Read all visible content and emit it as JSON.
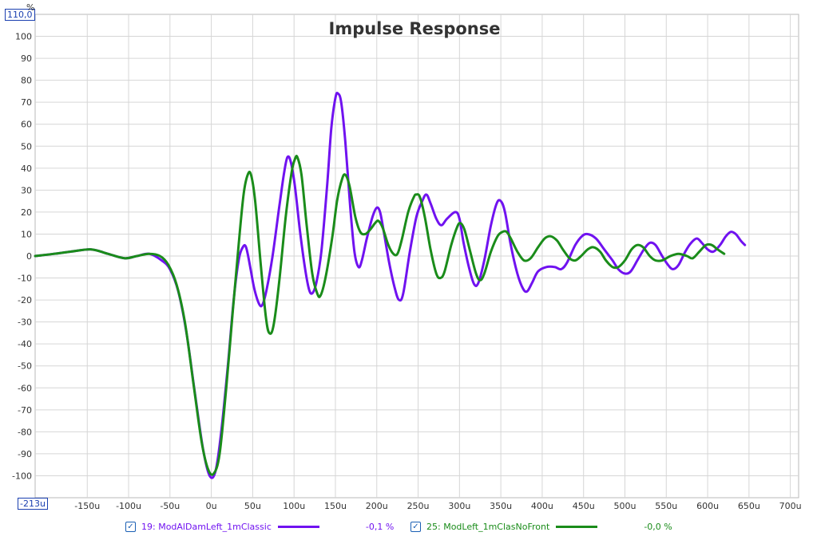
{
  "chart_data": {
    "type": "line",
    "title": "Impulse Response",
    "xlabel": "",
    "ylabel": "%",
    "y_max_label": "110,0",
    "x_min_label": "-213u",
    "xlim": [
      -213,
      710
    ],
    "ylim": [
      -110,
      110
    ],
    "x_ticks": [
      -150,
      -100,
      -50,
      0,
      50,
      100,
      150,
      200,
      250,
      300,
      350,
      400,
      450,
      500,
      550,
      600,
      650,
      700
    ],
    "x_tick_labels": [
      "-150u",
      "-100u",
      "-50u",
      "0u",
      "50u",
      "100u",
      "150u",
      "200u",
      "250u",
      "300u",
      "350u",
      "400u",
      "450u",
      "500u",
      "550u",
      "600u",
      "650u",
      "700u"
    ],
    "y_ticks": [
      100,
      90,
      80,
      70,
      60,
      50,
      40,
      30,
      20,
      10,
      0,
      -10,
      -20,
      -30,
      -40,
      -50,
      -60,
      -70,
      -80,
      -90,
      -100
    ],
    "y_tick_labels": [
      "100",
      "90",
      "80",
      "70",
      "60",
      "50",
      "40",
      "30",
      "20",
      "10",
      "0",
      "-10",
      "-20",
      "-30",
      "-40",
      "-50",
      "-60",
      "-70",
      "-80",
      "-90",
      "-100"
    ],
    "grid": true,
    "legend_position": "bottom",
    "series": [
      {
        "name": "19: ModAlDamLeft_1mClassic",
        "value_label": "-0,1 %",
        "color": "#7012f0",
        "points": [
          [
            -213,
            0
          ],
          [
            -190,
            1
          ],
          [
            -170,
            2
          ],
          [
            -145,
            3
          ],
          [
            -125,
            1
          ],
          [
            -105,
            -1
          ],
          [
            -90,
            0
          ],
          [
            -75,
            1
          ],
          [
            -60,
            -2
          ],
          [
            -50,
            -6
          ],
          [
            -40,
            -16
          ],
          [
            -30,
            -35
          ],
          [
            -20,
            -62
          ],
          [
            -10,
            -88
          ],
          [
            -2,
            -100
          ],
          [
            5,
            -98
          ],
          [
            12,
            -80
          ],
          [
            20,
            -50
          ],
          [
            27,
            -20
          ],
          [
            33,
            -2
          ],
          [
            38,
            4
          ],
          [
            42,
            4
          ],
          [
            47,
            -5
          ],
          [
            52,
            -15
          ],
          [
            58,
            -22
          ],
          [
            62,
            -22
          ],
          [
            67,
            -15
          ],
          [
            74,
            0
          ],
          [
            82,
            22
          ],
          [
            88,
            38
          ],
          [
            92,
            45
          ],
          [
            96,
            43
          ],
          [
            101,
            32
          ],
          [
            107,
            12
          ],
          [
            113,
            -5
          ],
          [
            118,
            -15
          ],
          [
            122,
            -17
          ],
          [
            127,
            -12
          ],
          [
            133,
            2
          ],
          [
            140,
            32
          ],
          [
            145,
            58
          ],
          [
            150,
            72
          ],
          [
            153,
            74
          ],
          [
            157,
            70
          ],
          [
            162,
            52
          ],
          [
            168,
            22
          ],
          [
            173,
            2
          ],
          [
            178,
            -5
          ],
          [
            182,
            -2
          ],
          [
            188,
            8
          ],
          [
            195,
            18
          ],
          [
            200,
            22
          ],
          [
            204,
            20
          ],
          [
            208,
            12
          ],
          [
            215,
            -3
          ],
          [
            222,
            -15
          ],
          [
            227,
            -20
          ],
          [
            232,
            -17
          ],
          [
            240,
            2
          ],
          [
            248,
            18
          ],
          [
            255,
            25
          ],
          [
            260,
            28
          ],
          [
            265,
            24
          ],
          [
            272,
            17
          ],
          [
            278,
            14
          ],
          [
            285,
            17
          ],
          [
            295,
            20
          ],
          [
            300,
            17
          ],
          [
            305,
            6
          ],
          [
            312,
            -6
          ],
          [
            318,
            -13
          ],
          [
            323,
            -12
          ],
          [
            330,
            -2
          ],
          [
            338,
            14
          ],
          [
            345,
            24
          ],
          [
            350,
            25
          ],
          [
            355,
            20
          ],
          [
            362,
            5
          ],
          [
            370,
            -8
          ],
          [
            377,
            -15
          ],
          [
            382,
            -16
          ],
          [
            388,
            -12
          ],
          [
            395,
            -7
          ],
          [
            405,
            -5
          ],
          [
            415,
            -5
          ],
          [
            423,
            -6
          ],
          [
            430,
            -3
          ],
          [
            440,
            5
          ],
          [
            448,
            9
          ],
          [
            455,
            10
          ],
          [
            465,
            8
          ],
          [
            475,
            3
          ],
          [
            485,
            -2
          ],
          [
            492,
            -6
          ],
          [
            500,
            -8
          ],
          [
            507,
            -7
          ],
          [
            515,
            -2
          ],
          [
            523,
            3
          ],
          [
            530,
            6
          ],
          [
            537,
            5
          ],
          [
            545,
            0
          ],
          [
            552,
            -4
          ],
          [
            558,
            -6
          ],
          [
            565,
            -4
          ],
          [
            573,
            2
          ],
          [
            580,
            6
          ],
          [
            587,
            8
          ],
          [
            593,
            6
          ],
          [
            600,
            3
          ],
          [
            607,
            2
          ],
          [
            615,
            5
          ],
          [
            622,
            9
          ],
          [
            628,
            11
          ],
          [
            634,
            10
          ],
          [
            640,
            7
          ],
          [
            645,
            5
          ]
        ]
      },
      {
        "name": "25: ModLeft_1mClasNoFront",
        "value_label": "-0,0 %",
        "color": "#1a8c1a",
        "points": [
          [
            -213,
            0
          ],
          [
            -190,
            1
          ],
          [
            -170,
            2
          ],
          [
            -145,
            3
          ],
          [
            -125,
            1
          ],
          [
            -105,
            -1
          ],
          [
            -90,
            0
          ],
          [
            -75,
            1
          ],
          [
            -62,
            0
          ],
          [
            -52,
            -4
          ],
          [
            -42,
            -13
          ],
          [
            -32,
            -30
          ],
          [
            -22,
            -57
          ],
          [
            -12,
            -84
          ],
          [
            -4,
            -97
          ],
          [
            3,
            -99
          ],
          [
            10,
            -90
          ],
          [
            18,
            -60
          ],
          [
            26,
            -25
          ],
          [
            33,
            5
          ],
          [
            39,
            28
          ],
          [
            44,
            37
          ],
          [
            48,
            37
          ],
          [
            53,
            25
          ],
          [
            60,
            -5
          ],
          [
            66,
            -28
          ],
          [
            70,
            -35
          ],
          [
            75,
            -32
          ],
          [
            82,
            -12
          ],
          [
            90,
            18
          ],
          [
            97,
            38
          ],
          [
            101,
            44
          ],
          [
            104,
            45
          ],
          [
            109,
            37
          ],
          [
            115,
            15
          ],
          [
            122,
            -8
          ],
          [
            128,
            -17
          ],
          [
            132,
            -18
          ],
          [
            138,
            -10
          ],
          [
            146,
            8
          ],
          [
            152,
            25
          ],
          [
            158,
            35
          ],
          [
            162,
            37
          ],
          [
            167,
            32
          ],
          [
            174,
            18
          ],
          [
            180,
            11
          ],
          [
            186,
            10
          ],
          [
            192,
            12
          ],
          [
            198,
            15
          ],
          [
            202,
            16
          ],
          [
            207,
            13
          ],
          [
            214,
            5
          ],
          [
            220,
            1
          ],
          [
            225,
            1
          ],
          [
            230,
            7
          ],
          [
            238,
            20
          ],
          [
            245,
            27
          ],
          [
            248,
            28
          ],
          [
            252,
            27
          ],
          [
            258,
            18
          ],
          [
            265,
            3
          ],
          [
            272,
            -8
          ],
          [
            277,
            -10
          ],
          [
            282,
            -7
          ],
          [
            290,
            5
          ],
          [
            297,
            13
          ],
          [
            301,
            15
          ],
          [
            306,
            12
          ],
          [
            313,
            2
          ],
          [
            320,
            -8
          ],
          [
            325,
            -11
          ],
          [
            330,
            -8
          ],
          [
            338,
            2
          ],
          [
            346,
            9
          ],
          [
            352,
            11
          ],
          [
            357,
            11
          ],
          [
            362,
            8
          ],
          [
            370,
            2
          ],
          [
            378,
            -2
          ],
          [
            386,
            -1
          ],
          [
            395,
            4
          ],
          [
            403,
            8
          ],
          [
            410,
            9
          ],
          [
            418,
            7
          ],
          [
            425,
            3
          ],
          [
            433,
            -1
          ],
          [
            440,
            -2
          ],
          [
            447,
            0
          ],
          [
            455,
            3
          ],
          [
            462,
            4
          ],
          [
            470,
            2
          ],
          [
            477,
            -2
          ],
          [
            485,
            -5
          ],
          [
            492,
            -5
          ],
          [
            500,
            -2
          ],
          [
            508,
            3
          ],
          [
            515,
            5
          ],
          [
            522,
            4
          ],
          [
            530,
            0
          ],
          [
            537,
            -2
          ],
          [
            545,
            -2
          ],
          [
            555,
            0
          ],
          [
            565,
            1
          ],
          [
            575,
            0
          ],
          [
            582,
            -1
          ],
          [
            590,
            2
          ],
          [
            598,
            5
          ],
          [
            605,
            5
          ],
          [
            612,
            3
          ],
          [
            620,
            1
          ]
        ]
      }
    ]
  }
}
